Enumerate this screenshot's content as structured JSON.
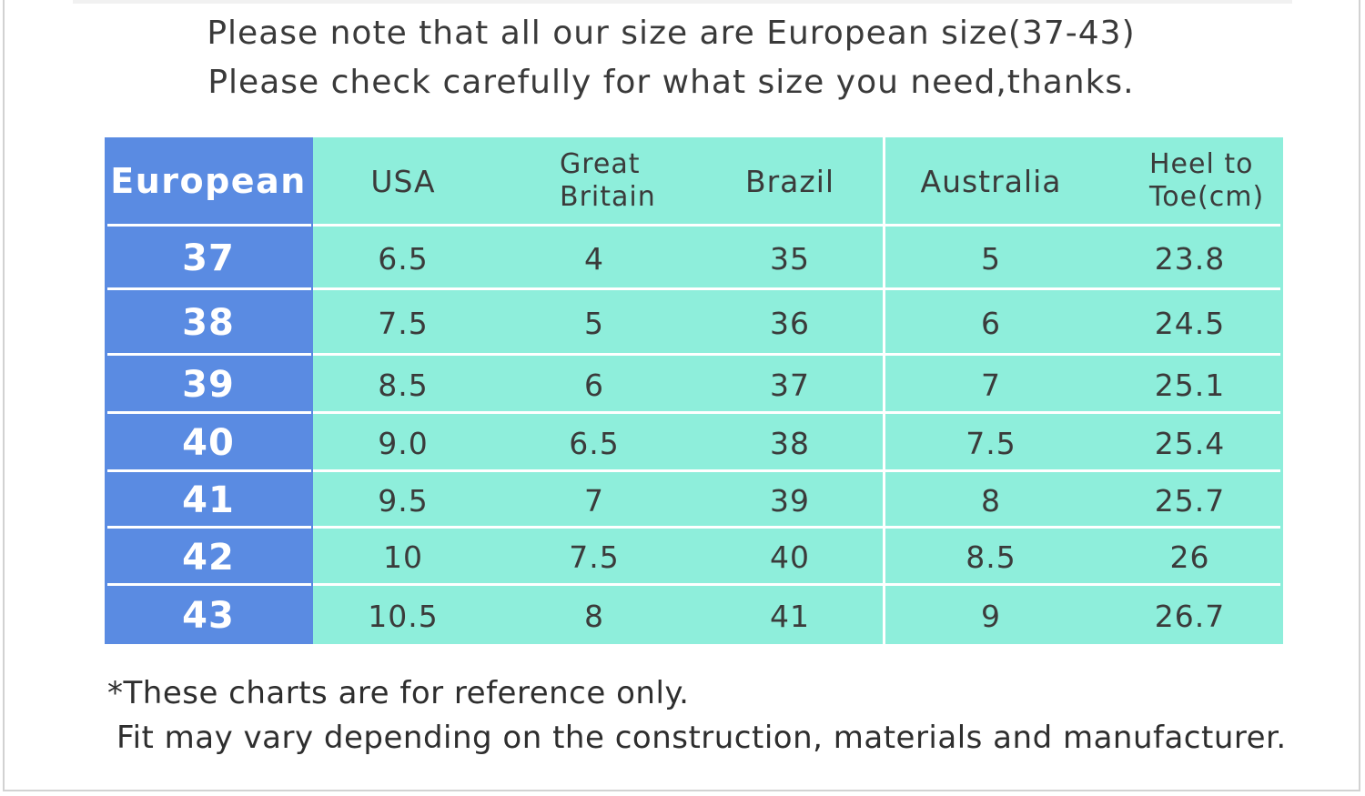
{
  "intro": {
    "line1": "Please note that all our size are European size(37-43)",
    "line2": "Please check carefully for what size you need,thanks."
  },
  "table": {
    "headers": {
      "european": "European",
      "usa": "USA",
      "great_britain": "Great Britain",
      "brazil": "Brazil",
      "australia": "Australia",
      "heel_to_toe": "Heel to Toe(cm)"
    },
    "rows": [
      {
        "european": "37",
        "usa": "6.5",
        "great_britain": "4",
        "brazil": "35",
        "australia": "5",
        "heel_to_toe": "23.8"
      },
      {
        "european": "38",
        "usa": "7.5",
        "great_britain": "5",
        "brazil": "36",
        "australia": "6",
        "heel_to_toe": "24.5"
      },
      {
        "european": "39",
        "usa": "8.5",
        "great_britain": "6",
        "brazil": "37",
        "australia": "7",
        "heel_to_toe": "25.1"
      },
      {
        "european": "40",
        "usa": "9.0",
        "great_britain": "6.5",
        "brazil": "38",
        "australia": "7.5",
        "heel_to_toe": "25.4"
      },
      {
        "european": "41",
        "usa": "9.5",
        "great_britain": "7",
        "brazil": "39",
        "australia": "8",
        "heel_to_toe": "25.7"
      },
      {
        "european": "42",
        "usa": "10",
        "great_britain": "7.5",
        "brazil": "40",
        "australia": "8.5",
        "heel_to_toe": "26"
      },
      {
        "european": "43",
        "usa": "10.5",
        "great_britain": "8",
        "brazil": "41",
        "australia": "9",
        "heel_to_toe": "26.7"
      }
    ]
  },
  "notes": {
    "line1": "*These charts are for reference only.",
    "line2": "Fit may vary depending on the construction, materials and manufacturer."
  },
  "colors": {
    "european_column": "#5a8be2",
    "table_background": "#8eeedb",
    "grid_lines": "#ffffff"
  }
}
